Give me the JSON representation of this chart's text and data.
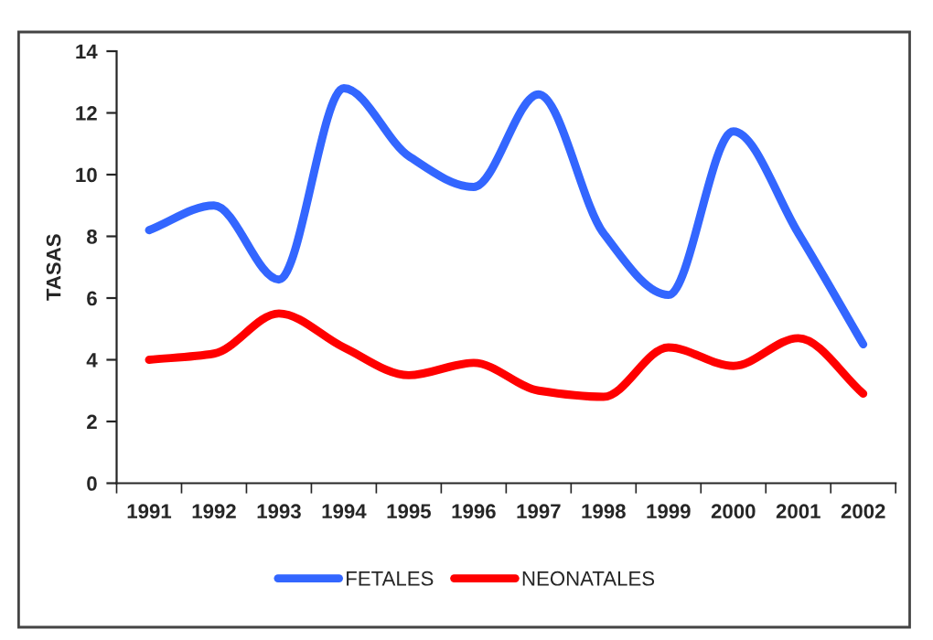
{
  "chart_data": {
    "type": "line",
    "ylabel": "TASAS",
    "categories": [
      "1991",
      "1992",
      "1993",
      "1994",
      "1995",
      "1996",
      "1997",
      "1998",
      "1999",
      "2000",
      "2001",
      "2002"
    ],
    "series": [
      {
        "name": "FETALES",
        "color": "#3366ff",
        "values": [
          8.2,
          9.0,
          6.6,
          12.8,
          10.6,
          9.6,
          12.6,
          8.1,
          6.1,
          11.4,
          8.1,
          4.5
        ]
      },
      {
        "name": "NEONATALES",
        "color": "#ff0000",
        "values": [
          4.0,
          4.2,
          5.5,
          4.4,
          3.5,
          3.9,
          3.0,
          2.8,
          4.4,
          3.8,
          4.7,
          2.9
        ]
      }
    ],
    "ylim": [
      0,
      14
    ],
    "yticks": [
      0,
      2,
      4,
      6,
      8,
      10,
      12,
      14
    ],
    "grid": false,
    "legend": "bottom",
    "line_style": "solid"
  }
}
